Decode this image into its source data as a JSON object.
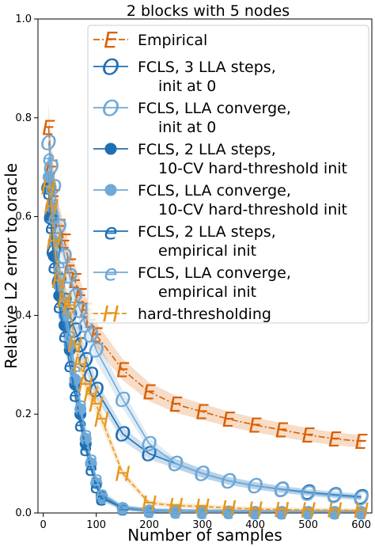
{
  "chart_data": {
    "type": "line",
    "title": "2 blocks with 5 nodes",
    "xlabel": "Number of samples",
    "ylabel": "Relative L2 error to oracle",
    "xlim": [
      -10,
      620
    ],
    "ylim": [
      0.0,
      1.0
    ],
    "xticks": [
      0,
      100,
      200,
      300,
      400,
      500,
      600
    ],
    "yticks": [
      0.0,
      0.2,
      0.4,
      0.6,
      0.8,
      1.0
    ],
    "ytick_labels": [
      "0.0",
      "0.2",
      "0.4",
      "0.6",
      "0.8",
      "1.0"
    ],
    "legend_position": "upper-right",
    "series": [
      {
        "name": "Empirical",
        "legend_lines": [
          "Empirical"
        ],
        "marker": "E",
        "marker_type": "text",
        "linestyle": "dashdot",
        "color": "#d95f02",
        "x": [
          10,
          15,
          20,
          30,
          40,
          50,
          60,
          70,
          80,
          90,
          100,
          150,
          200,
          250,
          300,
          350,
          400,
          450,
          500,
          550,
          600
        ],
        "y": [
          0.78,
          0.7,
          0.64,
          0.58,
          0.55,
          0.5,
          0.47,
          0.44,
          0.41,
          0.39,
          0.36,
          0.29,
          0.245,
          0.22,
          0.205,
          0.19,
          0.178,
          0.168,
          0.158,
          0.15,
          0.145
        ]
      },
      {
        "name": "FCLS, 3 LLA steps, init at 0",
        "legend_lines": [
          "FCLS, 3 LLA steps,",
          "init at 0"
        ],
        "marker": "O",
        "marker_type": "text",
        "linestyle": "solid",
        "color": "#1f6fb4",
        "x": [
          10,
          15,
          20,
          30,
          40,
          50,
          60,
          70,
          80,
          90,
          100,
          150,
          200,
          250,
          300,
          350,
          400,
          450,
          500,
          550,
          600
        ],
        "y": [
          0.66,
          0.6,
          0.53,
          0.47,
          0.43,
          0.4,
          0.37,
          0.34,
          0.31,
          0.28,
          0.25,
          0.16,
          0.12,
          0.1,
          0.08,
          0.065,
          0.055,
          0.048,
          0.042,
          0.037,
          0.033
        ]
      },
      {
        "name": "FCLS, LLA converge, init at 0",
        "legend_lines": [
          "FCLS, LLA converge,",
          "init at 0"
        ],
        "marker": "O",
        "marker_type": "text",
        "linestyle": "solid",
        "color": "#6fa9d8",
        "x": [
          10,
          15,
          20,
          30,
          40,
          50,
          60,
          70,
          80,
          90,
          100,
          150,
          200,
          250,
          300,
          350,
          400,
          450,
          500,
          550,
          600
        ],
        "y": [
          0.75,
          0.7,
          0.66,
          0.58,
          0.52,
          0.48,
          0.44,
          0.41,
          0.38,
          0.36,
          0.33,
          0.23,
          0.14,
          0.1,
          0.08,
          0.065,
          0.055,
          0.047,
          0.04,
          0.035,
          0.03
        ]
      },
      {
        "name": "FCLS, 2 LLA steps, 10-CV hard-threshold init",
        "legend_lines": [
          "FCLS, 2 LLA steps,",
          "10-CV hard-threshold init"
        ],
        "marker": "dot",
        "marker_type": "circle",
        "linestyle": "solid",
        "color": "#1f6fb4",
        "x": [
          10,
          15,
          20,
          30,
          40,
          50,
          60,
          70,
          80,
          90,
          100,
          110,
          150,
          200,
          250,
          300,
          350,
          400,
          450,
          500,
          550,
          600
        ],
        "y": [
          0.66,
          0.6,
          0.52,
          0.44,
          0.38,
          0.33,
          0.26,
          0.2,
          0.14,
          0.1,
          0.06,
          0.035,
          0.01,
          0.005,
          0.004,
          0.003,
          0.003,
          0.002,
          0.002,
          0.002,
          0.002,
          0.002
        ]
      },
      {
        "name": "FCLS, LLA converge, 10-CV hard-threshold init",
        "legend_lines": [
          "FCLS, LLA converge,",
          "10-CV hard-threshold init"
        ],
        "marker": "dot",
        "marker_type": "circle",
        "linestyle": "solid",
        "color": "#6fa9d8",
        "x": [
          10,
          15,
          20,
          30,
          40,
          50,
          60,
          70,
          80,
          90,
          100,
          110,
          150,
          200,
          250,
          300,
          350,
          400,
          450,
          500,
          550,
          600
        ],
        "y": [
          0.68,
          0.62,
          0.55,
          0.46,
          0.4,
          0.34,
          0.27,
          0.21,
          0.15,
          0.1,
          0.06,
          0.03,
          0.01,
          0.005,
          0.004,
          0.003,
          0.003,
          0.002,
          0.002,
          0.002,
          0.002,
          0.002
        ]
      },
      {
        "name": "FCLS, 2 LLA steps, empirical init",
        "legend_lines": [
          "FCLS, 2 LLA steps,",
          "empirical init"
        ],
        "marker": "e",
        "marker_type": "text",
        "linestyle": "solid",
        "color": "#1f6fb4",
        "x": [
          10,
          15,
          20,
          30,
          40,
          50,
          60,
          70,
          80,
          90,
          100,
          110,
          150,
          200,
          250,
          300,
          350,
          400,
          450,
          500,
          550,
          600
        ],
        "y": [
          0.65,
          0.58,
          0.5,
          0.42,
          0.36,
          0.3,
          0.24,
          0.18,
          0.13,
          0.09,
          0.055,
          0.03,
          0.01,
          0.005,
          0.004,
          0.003,
          0.003,
          0.002,
          0.002,
          0.002,
          0.002,
          0.002
        ]
      },
      {
        "name": "FCLS, LLA converge, empirical init",
        "legend_lines": [
          "FCLS, LLA converge,",
          "empirical init"
        ],
        "marker": "e",
        "marker_type": "text",
        "linestyle": "solid",
        "color": "#6fa9d8",
        "x": [
          10,
          15,
          20,
          30,
          40,
          50,
          60,
          70,
          80,
          90,
          100,
          110,
          150,
          200,
          250,
          300,
          350,
          400,
          450,
          500,
          550,
          600
        ],
        "y": [
          0.72,
          0.66,
          0.6,
          0.5,
          0.43,
          0.36,
          0.29,
          0.22,
          0.16,
          0.11,
          0.07,
          0.04,
          0.012,
          0.006,
          0.004,
          0.003,
          0.003,
          0.002,
          0.002,
          0.002,
          0.002,
          0.002
        ]
      },
      {
        "name": "hard-thresholding",
        "legend_lines": [
          "hard-thresholding"
        ],
        "marker": "H",
        "marker_type": "text",
        "linestyle": "dashed",
        "color": "#e6971f",
        "x": [
          10,
          15,
          20,
          30,
          40,
          50,
          60,
          70,
          80,
          90,
          100,
          110,
          150,
          200,
          250,
          300,
          350,
          400,
          450,
          500,
          550,
          600
        ],
        "y": [
          0.66,
          0.62,
          0.55,
          0.47,
          0.43,
          0.42,
          0.34,
          0.3,
          0.26,
          0.24,
          0.22,
          0.19,
          0.08,
          0.02,
          0.015,
          0.013,
          0.01,
          0.008,
          0.007,
          0.006,
          0.006,
          0.005
        ]
      }
    ]
  }
}
